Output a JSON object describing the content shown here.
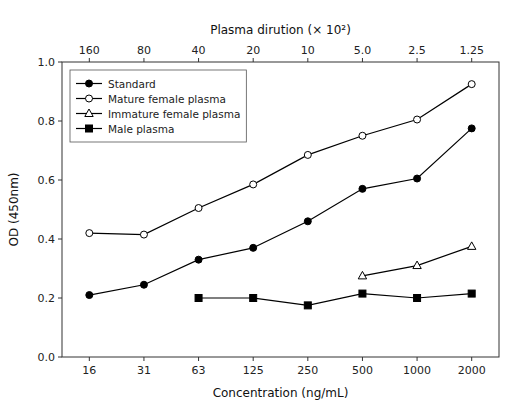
{
  "chart_data": {
    "type": "line",
    "x_label": "Concentration (ng/mL)",
    "x2_label": "Plasma dirution  (× 10²)",
    "y_label": "OD (450nm)",
    "categories": [
      "16",
      "31",
      "63",
      "125",
      "250",
      "500",
      "1000",
      "2000"
    ],
    "x2_categories": [
      "160",
      "80",
      "40",
      "20",
      "10",
      "5.0",
      "2.5",
      "1.25"
    ],
    "series": [
      {
        "name": "Standard",
        "color": "black",
        "marker": "filled-circle",
        "values": [
          0.21,
          0.245,
          0.33,
          0.37,
          0.46,
          0.57,
          0.605,
          0.775
        ]
      },
      {
        "name": "Mature female plasma",
        "color": "black",
        "marker": "open-circle",
        "values": [
          0.42,
          0.415,
          0.505,
          0.585,
          0.685,
          0.75,
          0.805,
          0.925
        ]
      },
      {
        "name": "Immature female plasma",
        "color": "black",
        "marker": "open-triangle",
        "values": [
          null,
          null,
          null,
          null,
          null,
          0.275,
          0.31,
          0.375
        ]
      },
      {
        "name": "Male plasma",
        "color": "black",
        "marker": "filled-square",
        "values": [
          null,
          null,
          0.2,
          0.2,
          0.175,
          0.215,
          0.2,
          0.215
        ]
      }
    ],
    "ylim": [
      0.0,
      1.0
    ],
    "yticks": [
      {
        "value": 0.0,
        "label": "0.0"
      },
      0.2,
      0.4,
      0.6,
      0.8,
      {
        "value": 1.0,
        "label": "1.0"
      }
    ],
    "grid": false,
    "legend": "upper left"
  }
}
